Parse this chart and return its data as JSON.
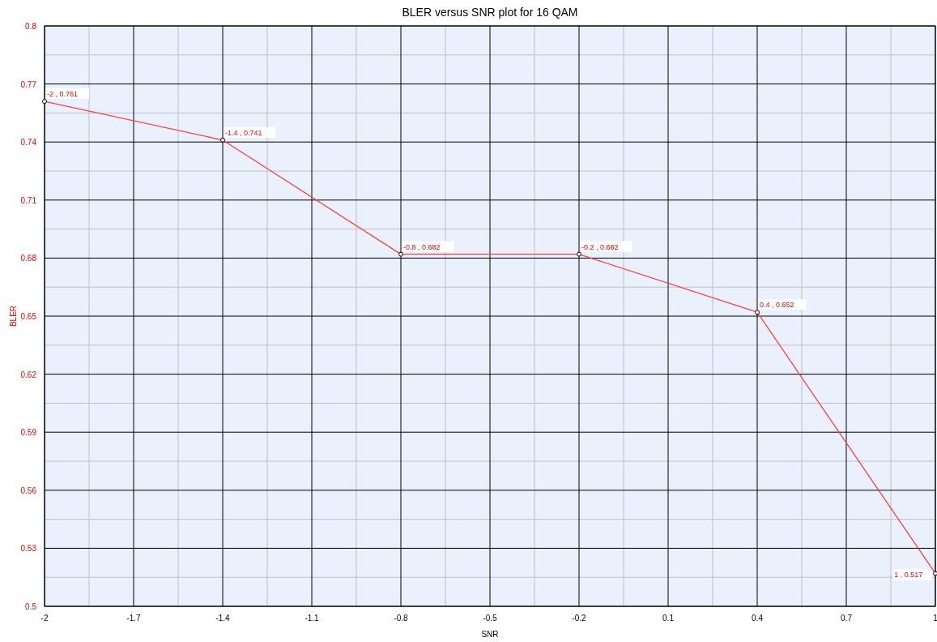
{
  "chart_data": {
    "type": "line",
    "title": "BLER versus SNR plot for 16 QAM",
    "xlabel": "SNR",
    "ylabel": "BLER",
    "x": [
      -2,
      -1.4,
      -0.8,
      -0.2,
      0.4,
      1
    ],
    "series": [
      {
        "color": "#ff4040",
        "values": [
          0.761,
          0.741,
          0.682,
          0.682,
          0.652,
          0.517
        ],
        "value_labels": [
          "-2 , 0.761",
          "-1.4 , 0.741",
          "-0.8 , 0.682",
          "-0.2 , 0.682",
          "0.4 , 0.652",
          "1 , 0.517"
        ]
      }
    ],
    "xlim": [
      -2,
      1
    ],
    "xticks": [
      -2,
      -1.7,
      -1.4,
      -1.1,
      -0.8,
      -0.5,
      -0.2,
      0.1,
      0.4,
      0.7,
      1
    ],
    "ylim": [
      0.5,
      0.8
    ],
    "yticks": [
      0.5,
      0.53,
      0.56,
      0.59,
      0.62,
      0.65,
      0.68,
      0.71,
      0.74,
      0.77,
      0.8
    ],
    "grid": true,
    "marker": "circle",
    "line_style": "solid"
  }
}
